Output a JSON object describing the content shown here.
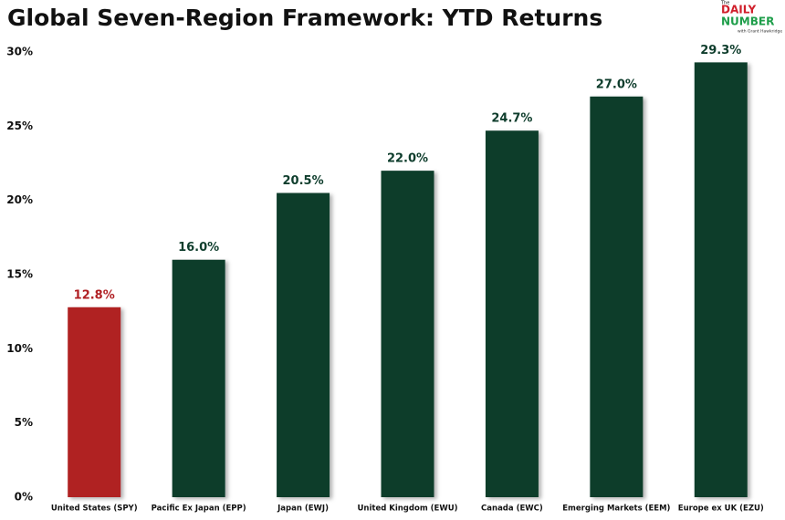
{
  "chart_data": {
    "type": "bar",
    "title": "Global Seven-Region Framework: YTD Returns",
    "categories": [
      "United States (SPY)",
      "Pacific Ex Japan (EPP)",
      "Japan (EWJ)",
      "United Kingdom (EWU)",
      "Canada (EWC)",
      "Emerging Markets (EEM)",
      "Europe ex UK (EZU)"
    ],
    "values": [
      12.8,
      16.0,
      20.5,
      22.0,
      24.7,
      27.0,
      29.3
    ],
    "value_labels": [
      "12.8%",
      "16.0%",
      "20.5%",
      "22.0%",
      "24.7%",
      "27.0%",
      "29.3%"
    ],
    "colors": [
      "#b02024",
      "#0e3d2c",
      "#0e3d2c",
      "#0e3d2c",
      "#0e3d2c",
      "#0e3d2c",
      "#0e3d2c"
    ],
    "ylim": [
      0,
      30
    ],
    "yticks": [
      {
        "value": 0,
        "label": "0%"
      },
      {
        "value": 5,
        "label": "5%"
      },
      {
        "value": 10,
        "label": "10%"
      },
      {
        "value": 15,
        "label": "15%"
      },
      {
        "value": 20,
        "label": "20%"
      },
      {
        "value": 25,
        "label": "25%"
      },
      {
        "value": 30,
        "label": "30%"
      }
    ],
    "grid": false
  },
  "logo": {
    "top": "The",
    "line1": "DAILY",
    "line2": "NUMBER",
    "byline": "with Grant Hawkridge"
  }
}
